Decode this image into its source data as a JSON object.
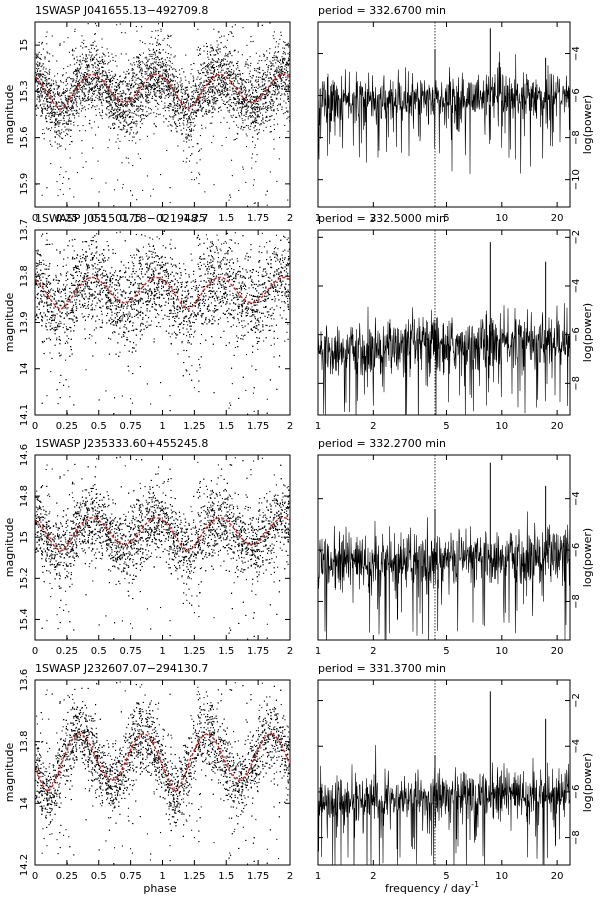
{
  "figure": {
    "xlabel_left": "phase",
    "xlabel_right": "frequency / day",
    "xlabel_right_exponent": "-1",
    "ylabel_left": "magnitude",
    "ylabel_right": "log(power)",
    "colors": {
      "axes": "#000000",
      "points": "#000000",
      "fit": "#cc2222",
      "marker": "#000000"
    }
  },
  "chart_data": [
    {
      "type": "scatter",
      "title": "1SWASP J041655.13−492709.8",
      "xlabel": "",
      "ylabel": "magnitude",
      "xlim": [
        0,
        2
      ],
      "ylim": [
        16.05,
        14.85
      ],
      "y_inverted": true,
      "xticks": [
        0,
        0.25,
        0.5,
        0.75,
        1,
        1.25,
        1.5,
        1.75,
        2
      ],
      "xticklabels": [
        "0",
        "0.25",
        "0.5",
        "0.75",
        "1",
        "1.25",
        "1.5",
        "1.75",
        "2"
      ],
      "yticks": [
        15,
        15.3,
        15.6,
        15.9
      ],
      "yticklabels": [
        "15",
        "15.3",
        "15.6",
        "15.9"
      ],
      "series": [
        {
          "kind": "points",
          "description_shape": {
            "mean": 15.28,
            "amplitude": 0.18,
            "primary_min_phase": 0.2,
            "secondary_min_phase": 0.7,
            "spread": 0.12
          }
        },
        {
          "kind": "fit_curve",
          "color": "#cc2222"
        }
      ]
    },
    {
      "type": "line",
      "title": "period = 332.6700 min",
      "xlabel": "",
      "ylabel": "log(power)",
      "xscale": "log",
      "xlim": [
        1,
        23.5
      ],
      "ylim": [
        -11.3,
        -2.5
      ],
      "xticks": [
        1,
        2,
        5,
        10,
        20
      ],
      "xticklabels": [
        "1",
        "2",
        "5",
        "10",
        "20"
      ],
      "yticks": [
        -4,
        -6,
        -8,
        -10
      ],
      "yticklabels": [
        "−4",
        "−6",
        "−8",
        "−10"
      ],
      "period_marker_frequency": 4.33,
      "peaks": [
        {
          "frequency": 4.33,
          "log_power": -3.8
        },
        {
          "frequency": 8.66,
          "log_power": -2.8
        },
        {
          "frequency": 17.32,
          "log_power": -4.2
        }
      ],
      "noise_level": -6.3
    },
    {
      "type": "scatter",
      "title": "1SWASP J051501.18−021948.7",
      "xlabel": "",
      "ylabel": "magnitude",
      "xlim": [
        0,
        2
      ],
      "ylim": [
        14.1,
        13.7
      ],
      "y_inverted": true,
      "xticks": [
        0,
        0.25,
        0.5,
        0.75,
        1,
        1.25,
        1.5,
        1.75,
        2
      ],
      "xticklabels": [
        "0",
        "0.25",
        "0.5",
        "0.75",
        "1",
        "1.25",
        "1.5",
        "1.75",
        "2"
      ],
      "yticks": [
        13.7,
        13.8,
        13.9,
        14,
        14.1
      ],
      "yticklabels": [
        "13.7",
        "13.8",
        "13.9",
        "14",
        "14.1"
      ],
      "series": [
        {
          "kind": "points",
          "description_shape": {
            "mean": 13.83,
            "amplitude": 0.055,
            "primary_min_phase": 0.2,
            "secondary_min_phase": 0.7,
            "spread": 0.05
          }
        },
        {
          "kind": "fit_curve",
          "color": "#cc2222"
        }
      ]
    },
    {
      "type": "line",
      "title": "period = 332.5000 min",
      "xlabel": "",
      "ylabel": "log(power)",
      "xscale": "log",
      "xlim": [
        1,
        23.5
      ],
      "ylim": [
        -9.3,
        -1.7
      ],
      "xticks": [
        1,
        2,
        5,
        10,
        20
      ],
      "xticklabels": [
        "1",
        "2",
        "5",
        "10",
        "20"
      ],
      "yticks": [
        -2,
        -4,
        -6,
        -8
      ],
      "yticklabels": [
        "−2",
        "−4",
        "−6",
        "−8"
      ],
      "period_marker_frequency": 4.33,
      "peaks": [
        {
          "frequency": 4.33,
          "log_power": -5.5
        },
        {
          "frequency": 8.66,
          "log_power": -2.2
        },
        {
          "frequency": 17.32,
          "log_power": -3.0
        }
      ],
      "noise_level": -6.6
    },
    {
      "type": "scatter",
      "title": "1SWASP J235333.60+455245.8",
      "xlabel": "",
      "ylabel": "magnitude",
      "xlim": [
        0,
        2
      ],
      "ylim": [
        15.5,
        14.6
      ],
      "y_inverted": true,
      "xticks": [
        0,
        0.25,
        0.5,
        0.75,
        1,
        1.25,
        1.5,
        1.75,
        2
      ],
      "xticklabels": [
        "0",
        "0.25",
        "0.5",
        "0.75",
        "1",
        "1.25",
        "1.5",
        "1.75",
        "2"
      ],
      "yticks": [
        14.6,
        14.8,
        15,
        15.2,
        15.4
      ],
      "yticklabels": [
        "14.6",
        "14.8",
        "15",
        "15.2",
        "15.4"
      ],
      "series": [
        {
          "kind": "points",
          "description_shape": {
            "mean": 14.97,
            "amplitude": 0.13,
            "primary_min_phase": 0.2,
            "secondary_min_phase": 0.7,
            "spread": 0.09
          }
        },
        {
          "kind": "fit_curve",
          "color": "#cc2222"
        }
      ]
    },
    {
      "type": "line",
      "title": "period = 332.2700 min",
      "xlabel": "",
      "ylabel": "log(power)",
      "xscale": "log",
      "xlim": [
        1,
        23.5
      ],
      "ylim": [
        -9.5,
        -2.3
      ],
      "xticks": [
        1,
        2,
        5,
        10,
        20
      ],
      "xticklabels": [
        "1",
        "2",
        "5",
        "10",
        "20"
      ],
      "yticks": [
        -4,
        -6,
        -8
      ],
      "yticklabels": [
        "−4",
        "−6",
        "−8"
      ],
      "period_marker_frequency": 4.33,
      "peaks": [
        {
          "frequency": 4.33,
          "log_power": -4.4
        },
        {
          "frequency": 8.66,
          "log_power": -2.6
        },
        {
          "frequency": 17.32,
          "log_power": -3.5
        }
      ],
      "noise_level": -6.5
    },
    {
      "type": "scatter",
      "title": "1SWASP J232607.07−294130.7",
      "xlabel": "phase",
      "ylabel": "magnitude",
      "xlim": [
        0,
        2
      ],
      "ylim": [
        14.2,
        13.6
      ],
      "y_inverted": true,
      "xticks": [
        0,
        0.25,
        0.5,
        0.75,
        1,
        1.25,
        1.5,
        1.75,
        2
      ],
      "xticklabels": [
        "0",
        "0.25",
        "0.5",
        "0.75",
        "1",
        "1.25",
        "1.5",
        "1.75",
        "2"
      ],
      "yticks": [
        13.6,
        13.8,
        14,
        14.2
      ],
      "yticklabels": [
        "13.6",
        "13.8",
        "14",
        "14.2"
      ],
      "series": [
        {
          "kind": "points",
          "description_shape": {
            "mean": 13.85,
            "amplitude": 0.15,
            "primary_min_phase": 0.1,
            "secondary_min_phase": 0.6,
            "spread": 0.06
          }
        },
        {
          "kind": "fit_curve",
          "color": "#cc2222"
        }
      ]
    },
    {
      "type": "line",
      "title": "period = 331.3700 min",
      "xlabel": "frequency / day⁻¹",
      "ylabel": "log(power)",
      "xscale": "log",
      "xlim": [
        1,
        23.5
      ],
      "ylim": [
        -9.2,
        -1.1
      ],
      "xticks": [
        1,
        2,
        5,
        10,
        20
      ],
      "xticklabels": [
        "1",
        "2",
        "5",
        "10",
        "20"
      ],
      "yticks": [
        -2,
        -4,
        -6,
        -8
      ],
      "yticklabels": [
        "−2",
        "−4",
        "−6",
        "−8"
      ],
      "period_marker_frequency": 4.33,
      "peaks": [
        {
          "frequency": 4.33,
          "log_power": -4.4
        },
        {
          "frequency": 8.66,
          "log_power": -1.6
        },
        {
          "frequency": 17.32,
          "log_power": -2.8
        }
      ],
      "noise_level": -6.4
    }
  ]
}
